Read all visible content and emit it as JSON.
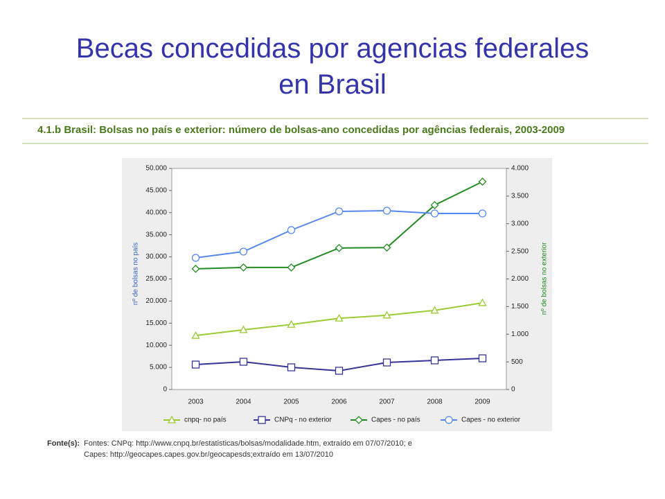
{
  "title_lines": [
    "Becas concedidas por agencias federales",
    "en Brasil"
  ],
  "header": "4.1.b Brasil: Bolsas no país e exterior: número de bolsas-ano concedidas por agências federais, 2003-2009",
  "source": {
    "label": "Fonte(s):",
    "lines": [
      "Fontes: CNPq: http://www.cnpq.br/estatisticas/bolsas/modalidade.htm, extraído em 07/07/2010; e",
      "Capes: http://geocapes.capes.gov.br/geocapesds;extraído em 13/07/2010"
    ]
  },
  "chart_data": {
    "type": "line",
    "categories": [
      "2003",
      "2004",
      "2005",
      "2006",
      "2007",
      "2008",
      "2009"
    ],
    "ylabel": "nº de bolsas no país",
    "y2label": "nº de bolsas no exterior",
    "ylim": [
      0,
      50000
    ],
    "yticks": [
      0,
      {
        "value": 5000,
        "label": "5.000"
      },
      {
        "value": 10000,
        "label": "10.000"
      },
      {
        "value": 15000,
        "label": "15.000"
      },
      {
        "value": 20000,
        "label": "20.000"
      },
      {
        "value": 25000,
        "label": "25.000"
      },
      {
        "value": 30000,
        "label": "30.000"
      },
      {
        "value": 35000,
        "label": "35.000"
      },
      {
        "value": 40000,
        "label": "40.000"
      },
      {
        "value": 45000,
        "label": "45.000"
      },
      {
        "value": 50000,
        "label": "50.000"
      }
    ],
    "y2lim": [
      0,
      4000
    ],
    "y2ticks": [
      0,
      500,
      {
        "value": 1000,
        "label": "1.000"
      },
      {
        "value": 1500,
        "label": "1.500"
      },
      {
        "value": 2000,
        "label": "2.000"
      },
      {
        "value": 2500,
        "label": "2.500"
      },
      {
        "value": 3000,
        "label": "3.000"
      },
      {
        "value": 3500,
        "label": "3.500"
      },
      {
        "value": 4000,
        "label": "4.000"
      }
    ],
    "legend": "bottom",
    "series": [
      {
        "name": "cnpq- no país",
        "color": "#99cc33",
        "marker": "triangle",
        "values": [
          12200,
          13500,
          14700,
          16100,
          16800,
          17900,
          19600
        ]
      },
      {
        "name": "CNPq - no exterior",
        "color": "#333399",
        "marker": "square",
        "axis": "y2",
        "values": [
          451,
          502,
          401,
          339,
          489,
          527,
          564
        ]
      },
      {
        "name": "Capes - no país",
        "color": "#228b22",
        "marker": "diamond",
        "values": [
          27300,
          27600,
          27600,
          32000,
          32100,
          41700,
          47000
        ]
      },
      {
        "name": "Capes - no exterior",
        "color": "#5588ee",
        "marker": "circle",
        "axis": "y2",
        "values": [
          2382,
          2495,
          2884,
          3223,
          3235,
          3185,
          3185
        ]
      }
    ]
  }
}
